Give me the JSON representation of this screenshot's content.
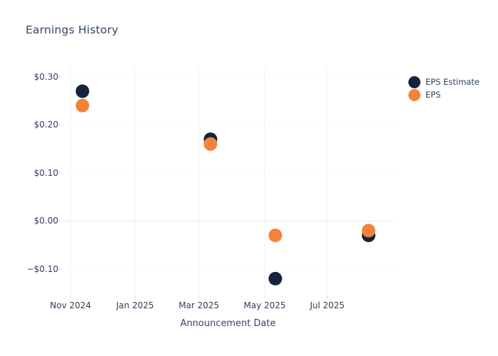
{
  "title": "Earnings History",
  "colors": {
    "background": "#FFFFFF",
    "title_text": "#344563",
    "tick_text": "#2F3E5A",
    "gridline": "#EDF2F9",
    "zero_line": "#E4EBF4",
    "tick_mark": "#D2DBE7",
    "eps_estimate": "#15233E",
    "eps_actual": "#F5823B"
  },
  "chart_data": {
    "type": "scatter",
    "title": "Earnings History",
    "xlabel": "Announcement Date",
    "ylabel": "",
    "x_tick_labels": [
      "Nov 2024",
      "Jan 2025",
      "Mar 2025",
      "May 2025",
      "Jul 2025"
    ],
    "x_tick_positions": [
      0.024,
      0.219,
      0.412,
      0.611,
      0.8
    ],
    "y_tick_labels": [
      "$0.30",
      "$0.20",
      "$0.10",
      "$0.00",
      "−$0.10"
    ],
    "y_tick_values": [
      0.3,
      0.2,
      0.1,
      0.0,
      -0.1
    ],
    "ylim": [
      -0.155,
      0.319
    ],
    "x_axis_note": "x positions are fractions of plot width; axis spans ~late Oct 2024 to early Sep 2025",
    "grid": true,
    "legend_position": "right",
    "marker_diameter_px": 19,
    "series": [
      {
        "name": "EPS Estimate",
        "color": "#15233E",
        "points": [
          {
            "date": "2024-11-12",
            "x_frac": 0.06,
            "y": 0.27
          },
          {
            "date": "2025-03-12",
            "x_frac": 0.447,
            "y": 0.17
          },
          {
            "date": "2025-05-11",
            "x_frac": 0.643,
            "y": -0.12
          },
          {
            "date": "2025-08-08",
            "x_frac": 0.925,
            "y": -0.03
          }
        ]
      },
      {
        "name": "EPS",
        "color": "#F5823B",
        "points": [
          {
            "date": "2024-11-12",
            "x_frac": 0.06,
            "y": 0.24
          },
          {
            "date": "2025-03-12",
            "x_frac": 0.447,
            "y": 0.16
          },
          {
            "date": "2025-05-11",
            "x_frac": 0.643,
            "y": -0.03
          },
          {
            "date": "2025-08-08",
            "x_frac": 0.925,
            "y": -0.02
          }
        ]
      }
    ]
  }
}
